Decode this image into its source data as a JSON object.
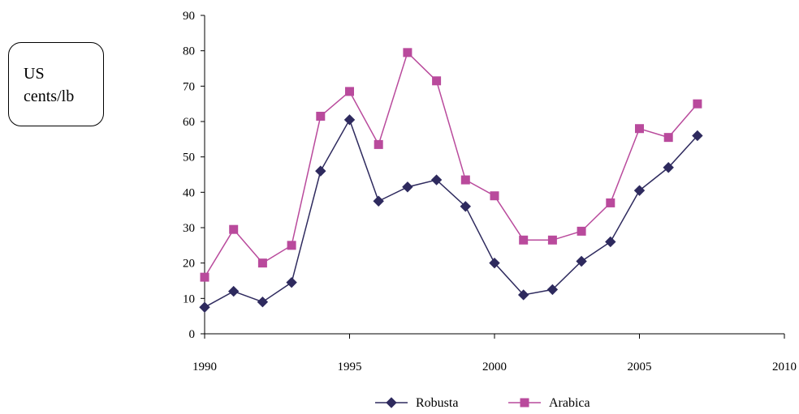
{
  "unit_label": {
    "line1": "US",
    "line2": "cents/lb"
  },
  "chart_data": {
    "type": "line",
    "title": "",
    "xlabel": "",
    "ylabel": "US cents/lb",
    "xlim": [
      1990,
      2010
    ],
    "ylim": [
      0,
      90
    ],
    "x_ticks": [
      1990,
      1995,
      2000,
      2005,
      2010
    ],
    "y_ticks": [
      0,
      10,
      20,
      30,
      40,
      50,
      60,
      70,
      80,
      90
    ],
    "grid": false,
    "legend": "bottom-center",
    "x": [
      1990,
      1991,
      1992,
      1993,
      1994,
      1995,
      1996,
      1997,
      1998,
      1999,
      2000,
      2001,
      2002,
      2003,
      2004,
      2005,
      2006,
      2007
    ],
    "series": [
      {
        "name": "Robusta",
        "color": "#2e2a5e",
        "marker": "diamond",
        "values": [
          7.5,
          12,
          9,
          14.5,
          46,
          60.5,
          37.5,
          41.5,
          43.5,
          36,
          20,
          11,
          12.5,
          20.5,
          26,
          40.5,
          47,
          56
        ]
      },
      {
        "name": "Arabica",
        "color": "#b94a9c",
        "marker": "square",
        "values": [
          16,
          29.5,
          20,
          25,
          61.5,
          68.5,
          53.5,
          79.5,
          71.5,
          43.5,
          39,
          26.5,
          26.5,
          29,
          37,
          58,
          55.5,
          65
        ]
      }
    ]
  }
}
